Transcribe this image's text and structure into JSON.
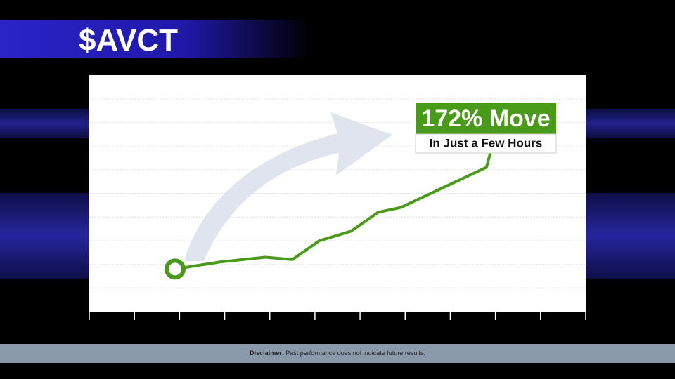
{
  "chart_data": {
    "type": "line",
    "title": "$AVCT",
    "annotations": [
      "172% Move",
      "In Just a Few Hours"
    ],
    "x": [
      1.9,
      2.9,
      3.9,
      4.5,
      5.1,
      5.8,
      6.4,
      6.9,
      8.8,
      8.9
    ],
    "series": [
      {
        "color": "#4a9a1a",
        "values": [
          1.8,
          2.1,
          2.3,
          2.2,
          3.0,
          3.4,
          4.2,
          4.4,
          6.1,
          6.8
        ]
      }
    ],
    "xlim": [
      0,
      11
    ],
    "xticks": [
      0,
      1,
      2,
      3,
      4,
      5,
      6,
      7,
      8,
      9,
      10,
      11
    ],
    "ylim": [
      0,
      10
    ],
    "yticks": [
      1,
      2,
      3,
      4,
      5,
      6,
      7,
      8,
      9
    ],
    "grid": true
  },
  "footer": {
    "label": "Disclaimer:",
    "text": "Past performance does not indicate future results."
  }
}
